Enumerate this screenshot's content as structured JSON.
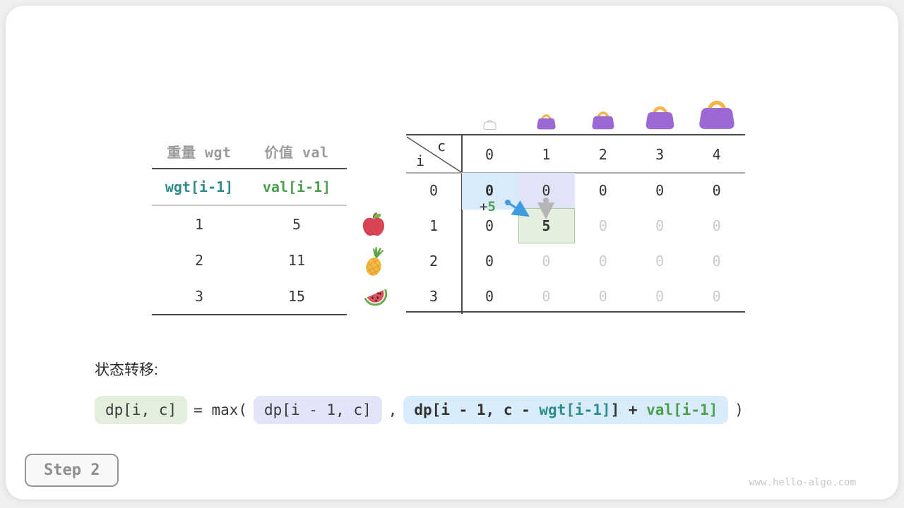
{
  "page": {
    "watermark": "www.hello-algo.com",
    "step_label": "Step 2"
  },
  "items_table": {
    "col_headers": [
      "重量 wgt",
      "价值 val"
    ],
    "var_row": [
      "wgt[i-1]",
      "val[i-1]"
    ],
    "rows": [
      [
        "1",
        "5"
      ],
      [
        "2",
        "11"
      ],
      [
        "3",
        "15"
      ]
    ],
    "fruits": [
      "apple",
      "pineapple",
      "watermelon"
    ]
  },
  "dp_table": {
    "corner_col": "c",
    "corner_row": "i",
    "col_headers": [
      "0",
      "1",
      "2",
      "3",
      "4"
    ],
    "row_headers": [
      "0",
      "1",
      "2",
      "3"
    ],
    "cells": [
      [
        "0",
        "0",
        "0",
        "0",
        "0"
      ],
      [
        "0",
        "5",
        "0",
        "0",
        "0"
      ],
      [
        "0",
        "0",
        "0",
        "0",
        "0"
      ],
      [
        "0",
        "0",
        "0",
        "0",
        "0"
      ]
    ],
    "dim_cells": [
      [
        1,
        2
      ],
      [
        1,
        3
      ],
      [
        1,
        4
      ],
      [
        2,
        1
      ],
      [
        2,
        2
      ],
      [
        2,
        3
      ],
      [
        2,
        4
      ],
      [
        3,
        1
      ],
      [
        3,
        2
      ],
      [
        3,
        3
      ],
      [
        3,
        4
      ]
    ],
    "bold_cells": [
      [
        0,
        0
      ],
      [
        1,
        1
      ]
    ],
    "highlights": {
      "source_keep": [
        0,
        1
      ],
      "source_take": [
        0,
        0
      ],
      "target": [
        1,
        1
      ]
    },
    "annotation": {
      "plus": "+",
      "value": "5"
    },
    "bags": [
      "bag-empty",
      "bag-size-1",
      "bag-size-2",
      "bag-size-3",
      "bag-size-4"
    ]
  },
  "transition": {
    "label": "状态转移:",
    "lhs": "dp[i, c]",
    "equals": "= max(",
    "option_keep": "dp[i - 1, c]",
    "separator": ",",
    "option_take_prefix": "dp[i - 1, c - ",
    "option_take_wgt": "wgt[i-1]",
    "option_take_mid": "] + ",
    "option_take_val": "val[i-1]",
    "close": ")"
  },
  "colors": {
    "teal": "#2e8c8c",
    "green": "#4e9e50",
    "blue_arrow": "#3f9be0",
    "gray_arrow": "#b5b5b5",
    "hl_blue": "#d9eaf8",
    "hl_purple": "#e1e3f7",
    "hl_green": "#e4efde",
    "hl_green_border": "#abcaa4",
    "pill_green": "#e3efdc",
    "pill_purple": "#e2e4f8",
    "pill_blue": "#d8ecf9",
    "bag_purple": "#9c68d4",
    "bag_handle": "#f3b54a"
  }
}
